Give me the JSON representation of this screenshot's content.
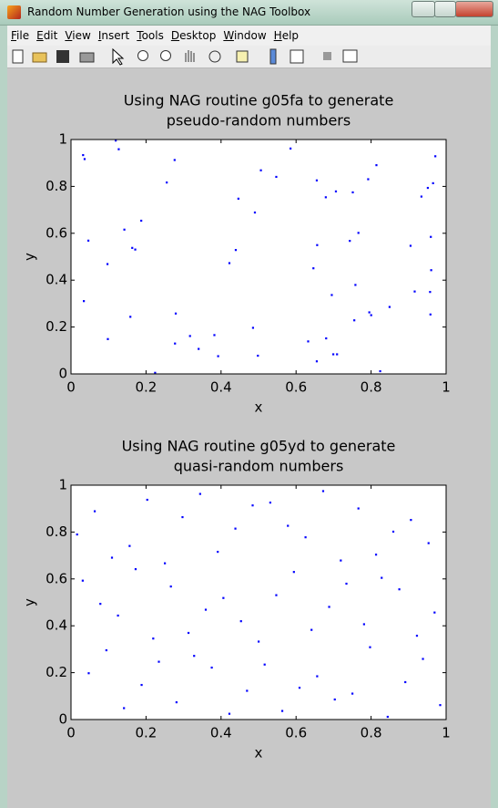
{
  "window_title": "Random Number Generation using the NAG Toolbox",
  "menu": [
    "File",
    "Edit",
    "View",
    "Insert",
    "Tools",
    "Desktop",
    "Window",
    "Help"
  ],
  "chart_data": [
    {
      "type": "scatter",
      "title": [
        "Using NAG routine g05fa to generate",
        "pseudo-random numbers"
      ],
      "x_label": "x",
      "y_label": "y",
      "color": "#0000ff",
      "xlim": [
        0,
        1
      ],
      "ylim": [
        0,
        1
      ],
      "xticks": [
        0,
        0.2,
        0.4,
        0.6,
        0.8,
        1
      ],
      "yticks": [
        0,
        0.2,
        0.4,
        0.6,
        0.8,
        1
      ],
      "x": [
        0.814,
        0.127,
        0.905,
        0.632,
        0.098,
        0.279,
        0.547,
        0.958,
        0.965,
        0.158,
        0.971,
        0.957,
        0.485,
        0.8,
        0.142,
        0.422,
        0.916,
        0.792,
        0.959,
        0.656,
        0.036,
        0.849,
        0.934,
        0.679,
        0.758,
        0.743,
        0.392,
        0.655,
        0.171,
        0.706,
        0.032,
        0.277,
        0.046,
        0.097,
        0.824,
        0.695,
        0.317,
        0.951,
        0.034,
        0.439,
        0.382,
        0.766,
        0.795,
        0.187,
        0.49,
        0.446,
        0.646,
        0.709,
        0.755,
        0.276,
        0.68,
        0.655,
        0.163,
        0.119,
        0.498,
        0.96,
        0.34,
        0.585,
        0.224,
        0.751,
        0.255,
        0.506,
        0.699
      ],
      "y": [
        0.891,
        0.959,
        0.547,
        0.139,
        0.149,
        0.258,
        0.841,
        0.254,
        0.814,
        0.244,
        0.929,
        0.35,
        0.197,
        0.251,
        0.616,
        0.473,
        0.352,
        0.831,
        0.585,
        0.55,
        0.917,
        0.286,
        0.757,
        0.754,
        0.38,
        0.568,
        0.076,
        0.054,
        0.531,
        0.779,
        0.934,
        0.13,
        0.569,
        0.469,
        0.012,
        0.337,
        0.162,
        0.794,
        0.311,
        0.529,
        0.166,
        0.602,
        0.263,
        0.654,
        0.689,
        0.748,
        0.451,
        0.084,
        0.229,
        0.913,
        0.152,
        0.826,
        0.538,
        0.996,
        0.078,
        0.443,
        0.107,
        0.962,
        0.005,
        0.775,
        0.817,
        0.869,
        0.084
      ]
    },
    {
      "type": "scatter",
      "title": [
        "Using NAG routine g05yd to generate",
        "quasi-random numbers"
      ],
      "x_label": "x",
      "y_label": "y",
      "color": "#0000ff",
      "xlim": [
        0,
        1
      ],
      "ylim": [
        0,
        1
      ],
      "xticks": [
        0,
        0.2,
        0.4,
        0.6,
        0.8,
        1
      ],
      "yticks": [
        0,
        0.2,
        0.4,
        0.6,
        0.8,
        1
      ],
      "x": [
        0.5,
        0.25,
        0.75,
        0.125,
        0.625,
        0.375,
        0.875,
        0.063,
        0.563,
        0.313,
        0.813,
        0.188,
        0.688,
        0.438,
        0.938,
        0.031,
        0.531,
        0.281,
        0.781,
        0.156,
        0.656,
        0.406,
        0.906,
        0.094,
        0.594,
        0.344,
        0.844,
        0.219,
        0.719,
        0.469,
        0.969,
        0.016,
        0.516,
        0.266,
        0.766,
        0.141,
        0.641,
        0.391,
        0.891,
        0.078,
        0.578,
        0.328,
        0.828,
        0.203,
        0.703,
        0.453,
        0.953,
        0.047,
        0.547,
        0.297,
        0.797,
        0.172,
        0.672,
        0.422,
        0.922,
        0.109,
        0.609,
        0.359,
        0.859,
        0.234,
        0.734,
        0.484,
        0.984
      ],
      "y": [
        0.333,
        0.667,
        0.111,
        0.444,
        0.778,
        0.222,
        0.556,
        0.889,
        0.037,
        0.37,
        0.704,
        0.148,
        0.481,
        0.815,
        0.259,
        0.593,
        0.926,
        0.074,
        0.407,
        0.741,
        0.185,
        0.519,
        0.852,
        0.296,
        0.63,
        0.963,
        0.012,
        0.346,
        0.679,
        0.123,
        0.457,
        0.79,
        0.235,
        0.568,
        0.901,
        0.049,
        0.383,
        0.716,
        0.16,
        0.494,
        0.827,
        0.272,
        0.605,
        0.938,
        0.086,
        0.42,
        0.753,
        0.198,
        0.531,
        0.864,
        0.309,
        0.642,
        0.975,
        0.025,
        0.358,
        0.691,
        0.136,
        0.469,
        0.802,
        0.247,
        0.58,
        0.914,
        0.062
      ]
    }
  ]
}
